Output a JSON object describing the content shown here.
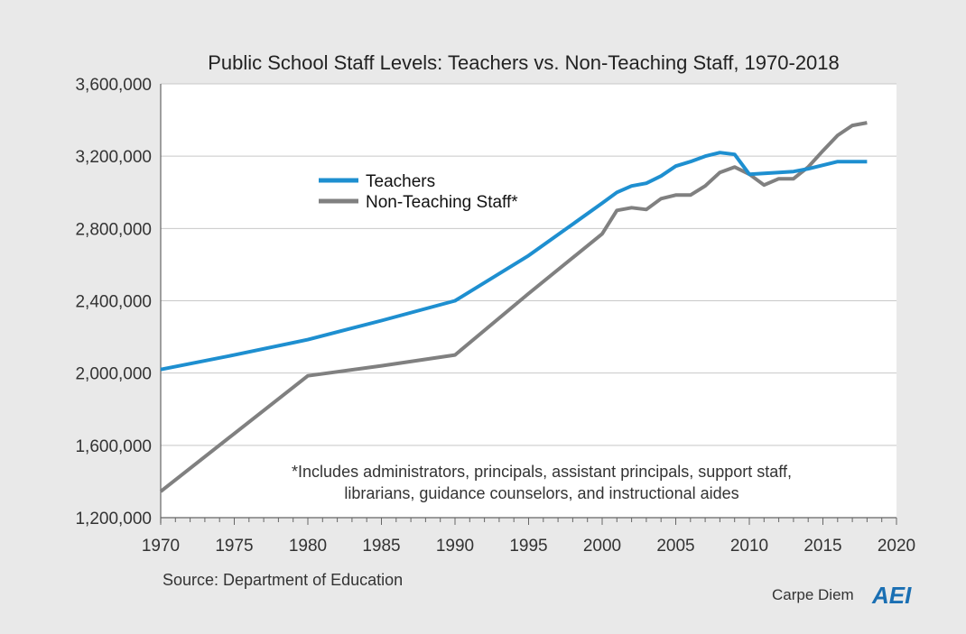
{
  "chart_data": {
    "type": "line",
    "title": "Public School Staff Levels: Teachers vs. Non-Teaching Staff, 1970-2018",
    "xlim": [
      1970,
      2020
    ],
    "ylim": [
      1200000,
      3600000
    ],
    "x_ticks": [
      1970,
      1975,
      1980,
      1985,
      1990,
      1995,
      2000,
      2005,
      2010,
      2015,
      2020
    ],
    "x_tick_labels": [
      "1970",
      "1975",
      "1980",
      "1985",
      "1990",
      "1995",
      "2000",
      "2005",
      "2010",
      "2015",
      "2020"
    ],
    "y_ticks": [
      1200000,
      1600000,
      2000000,
      2400000,
      2800000,
      3200000,
      3600000
    ],
    "y_tick_labels": [
      "1,200,000",
      "1,600,000",
      "2,000,000",
      "2,400,000",
      "2,800,000",
      "3,200,000",
      "3,600,000"
    ],
    "grid": "horizontal",
    "legend_position": "upper-left",
    "series": [
      {
        "name": "Teachers",
        "color": "#1e8fd0",
        "points": [
          [
            1970,
            2020000
          ],
          [
            1975,
            2100000
          ],
          [
            1980,
            2185000
          ],
          [
            1985,
            2290000
          ],
          [
            1990,
            2400000
          ],
          [
            1995,
            2650000
          ],
          [
            2000,
            2940000
          ],
          [
            2001,
            3000000
          ],
          [
            2002,
            3035000
          ],
          [
            2003,
            3050000
          ],
          [
            2004,
            3090000
          ],
          [
            2005,
            3145000
          ],
          [
            2006,
            3170000
          ],
          [
            2007,
            3200000
          ],
          [
            2008,
            3220000
          ],
          [
            2009,
            3210000
          ],
          [
            2010,
            3100000
          ],
          [
            2011,
            3105000
          ],
          [
            2012,
            3110000
          ],
          [
            2013,
            3115000
          ],
          [
            2014,
            3130000
          ],
          [
            2015,
            3150000
          ],
          [
            2016,
            3170000
          ],
          [
            2017,
            3170000
          ],
          [
            2018,
            3170000
          ]
        ]
      },
      {
        "name": "Non-Teaching Staff*",
        "color": "#808080",
        "points": [
          [
            1970,
            1345000
          ],
          [
            1975,
            1665000
          ],
          [
            1980,
            1985000
          ],
          [
            1985,
            2040000
          ],
          [
            1990,
            2100000
          ],
          [
            1995,
            2440000
          ],
          [
            2000,
            2770000
          ],
          [
            2001,
            2900000
          ],
          [
            2002,
            2915000
          ],
          [
            2003,
            2905000
          ],
          [
            2004,
            2965000
          ],
          [
            2005,
            2985000
          ],
          [
            2006,
            2985000
          ],
          [
            2007,
            3035000
          ],
          [
            2008,
            3110000
          ],
          [
            2009,
            3140000
          ],
          [
            2010,
            3100000
          ],
          [
            2011,
            3040000
          ],
          [
            2012,
            3075000
          ],
          [
            2013,
            3075000
          ],
          [
            2014,
            3140000
          ],
          [
            2015,
            3230000
          ],
          [
            2016,
            3315000
          ],
          [
            2017,
            3370000
          ],
          [
            2018,
            3385000
          ]
        ]
      }
    ],
    "annotation": [
      "*Includes administrators, principals, assistant principals, support staff,",
      "librarians, guidance counselors, and instructional aides"
    ]
  },
  "footer": {
    "source": "Source: Department of Education",
    "brand": "Carpe Diem",
    "logo": "AEI",
    "logo_color": "#1a6fb3"
  }
}
